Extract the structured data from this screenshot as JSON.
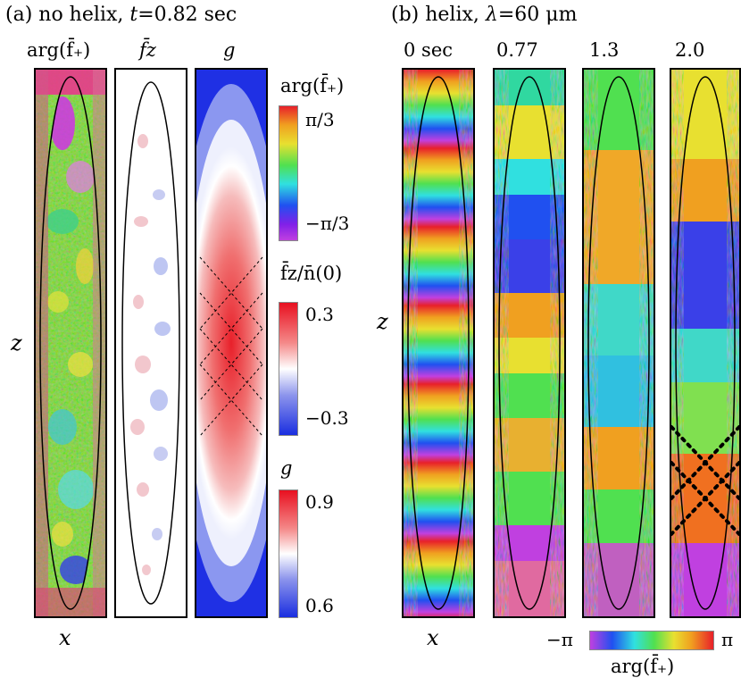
{
  "panel_a": {
    "heading_prefix": "(a) no helix,",
    "heading_t_symbol": "t",
    "heading_t_value": "=0.82 sec",
    "col_labels": [
      "arg(f̄₊)",
      "f̄z",
      "g"
    ],
    "xlabel": "x",
    "zlabel": "z"
  },
  "panel_b": {
    "heading_prefix": "(b) helix,",
    "heading_lambda_symbol": "λ",
    "heading_lambda_value": "=60 μm",
    "time_labels": [
      "0 sec",
      "0.77",
      "1.3",
      "2.0"
    ],
    "xlabel": "x",
    "zlabel": "z"
  },
  "colorbars": {
    "phase": {
      "title": "arg(f̄₊)",
      "max_label": "π/3",
      "min_label": "−π/3"
    },
    "fz": {
      "title": "f̄z/n̄(0)",
      "max_label": "0.3",
      "min_label": "−0.3"
    },
    "g": {
      "title": "g",
      "max_label": "0.9",
      "min_label": "0.6"
    },
    "phase_full": {
      "left_label": "−π",
      "right_label": "π",
      "title": "arg(f̄₊)"
    }
  },
  "colors": {
    "red": "#e8102a",
    "blue": "#1a2ee0",
    "white": "#ffffff"
  }
}
